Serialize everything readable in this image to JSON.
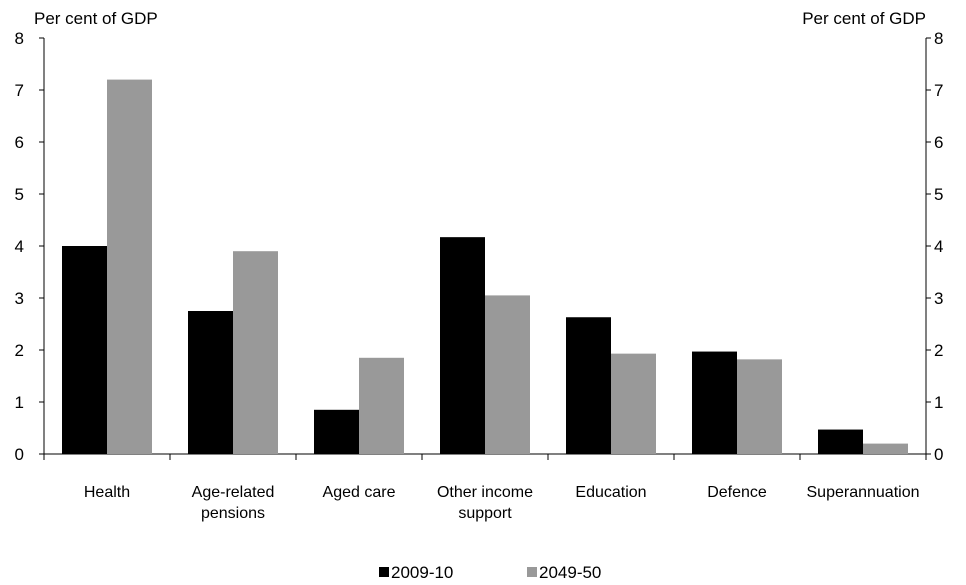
{
  "chart_data": {
    "type": "bar",
    "title": "",
    "ylabel_left": "Per cent of GDP",
    "ylabel_right": "Per cent of GDP",
    "xlabel": "",
    "ylim": [
      0,
      8
    ],
    "yticks": [
      "0",
      "1",
      "2",
      "3",
      "4",
      "5",
      "6",
      "7",
      "8"
    ],
    "grid": false,
    "legend_position": "bottom",
    "categories": [
      [
        "Health"
      ],
      [
        "Age-related",
        "pensions"
      ],
      [
        "Aged care"
      ],
      [
        "Other income",
        "support"
      ],
      [
        "Education"
      ],
      [
        "Defence"
      ],
      [
        "Superannuation"
      ]
    ],
    "series": [
      {
        "name": "2009-10",
        "color": "#000000",
        "values": [
          4.0,
          2.75,
          0.85,
          4.17,
          2.63,
          1.97,
          0.47
        ]
      },
      {
        "name": "2049-50",
        "color": "#999999",
        "values": [
          7.2,
          3.9,
          1.85,
          3.05,
          1.93,
          1.82,
          0.2
        ]
      }
    ]
  }
}
